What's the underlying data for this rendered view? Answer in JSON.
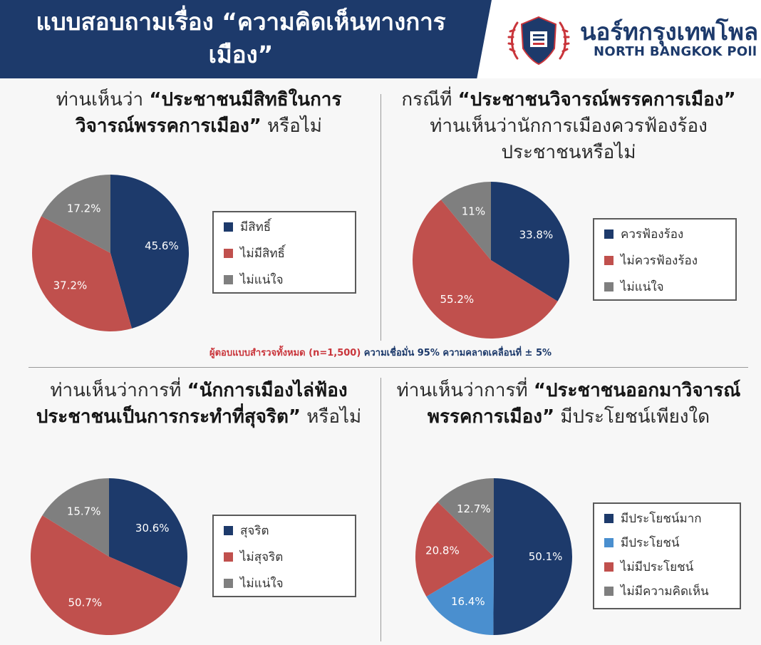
{
  "header": {
    "title": "แบบสอบถามเรื่อง “ความคิดเห็นทางการเมือง”",
    "logo_icon": "north-bangkok-poll-emblem",
    "brand_th": "นอร์ทกรุงเทพโพล",
    "brand_en": "NORTH BANGKOK POll"
  },
  "colors": {
    "navy": "#1d3a6b",
    "red": "#c0504d",
    "gray": "#7f7f7f",
    "lightblue": "#4a8fcf"
  },
  "questions": [
    {
      "pre": "ท่านเห็นว่า ",
      "bold": "“ประชาชนมีสิทธิในการวิจารณ์พรรคการเมือง”",
      "post": " หรือไม่"
    },
    {
      "pre": "กรณีที่ ",
      "bold": "“ประชาชนวิจารณ์พรรคการเมือง”",
      "post": " ท่านเห็นว่านักการเมืองควรฟ้องร้องประชาชนหรือไม่"
    },
    {
      "pre": "ท่านเห็นว่าการที่ ",
      "bold": "“นักการเมืองไล่ฟ้องประชาชนเป็นการกระทำที่สุจริต”",
      "post": " หรือไม่"
    },
    {
      "pre": "ท่านเห็นว่าการที่ ",
      "bold": "“ประชาชนออกมาวิจารณ์พรรคการเมือง”",
      "post": " มีประโยชน์เพียงใด"
    }
  ],
  "note": {
    "part1": "ผู้ตอบแบบสำรวจทั้งหมด (n=1,500)",
    "part2": " ความเชื่อมั่น 95% ความคลาดเคลื่อนที่ ± 5%"
  },
  "chart_data": [
    {
      "type": "pie",
      "categories": [
        "มีสิทธิ์",
        "ไม่มีสิทธิ์",
        "ไม่แน่ใจ"
      ],
      "values": [
        45.6,
        37.2,
        17.2
      ],
      "labels": [
        "45.6%",
        "37.2%",
        "17.2%"
      ],
      "colors": [
        "#1d3a6b",
        "#c0504d",
        "#7f7f7f"
      ],
      "legend": "right"
    },
    {
      "type": "pie",
      "categories": [
        "ควรฟ้องร้อง",
        "ไม่ควรฟ้องร้อง",
        "ไม่แน่ใจ"
      ],
      "values": [
        33.8,
        55.2,
        11
      ],
      "labels": [
        "33.8%",
        "55.2%",
        "11%"
      ],
      "colors": [
        "#1d3a6b",
        "#c0504d",
        "#7f7f7f"
      ],
      "legend": "right"
    },
    {
      "type": "pie",
      "categories": [
        "สุจริต",
        "ไม่สุจริต",
        "ไม่แน่ใจ"
      ],
      "values": [
        30.6,
        50.7,
        15.7
      ],
      "labels": [
        "30.6%",
        "50.7%",
        "15.7%"
      ],
      "colors": [
        "#1d3a6b",
        "#c0504d",
        "#7f7f7f"
      ],
      "legend": "right"
    },
    {
      "type": "pie",
      "categories": [
        "มีประโยชน์มาก",
        "มีประโยชน์",
        "ไม่มีประโยชน์",
        "ไม่มีความคิดเห็น"
      ],
      "values": [
        50.1,
        16.4,
        20.8,
        12.7
      ],
      "labels": [
        "50.1%",
        "16.4%",
        "20.8%",
        "12.7%"
      ],
      "colors": [
        "#1d3a6b",
        "#4a8fcf",
        "#c0504d",
        "#7f7f7f"
      ],
      "legend": "right"
    }
  ]
}
